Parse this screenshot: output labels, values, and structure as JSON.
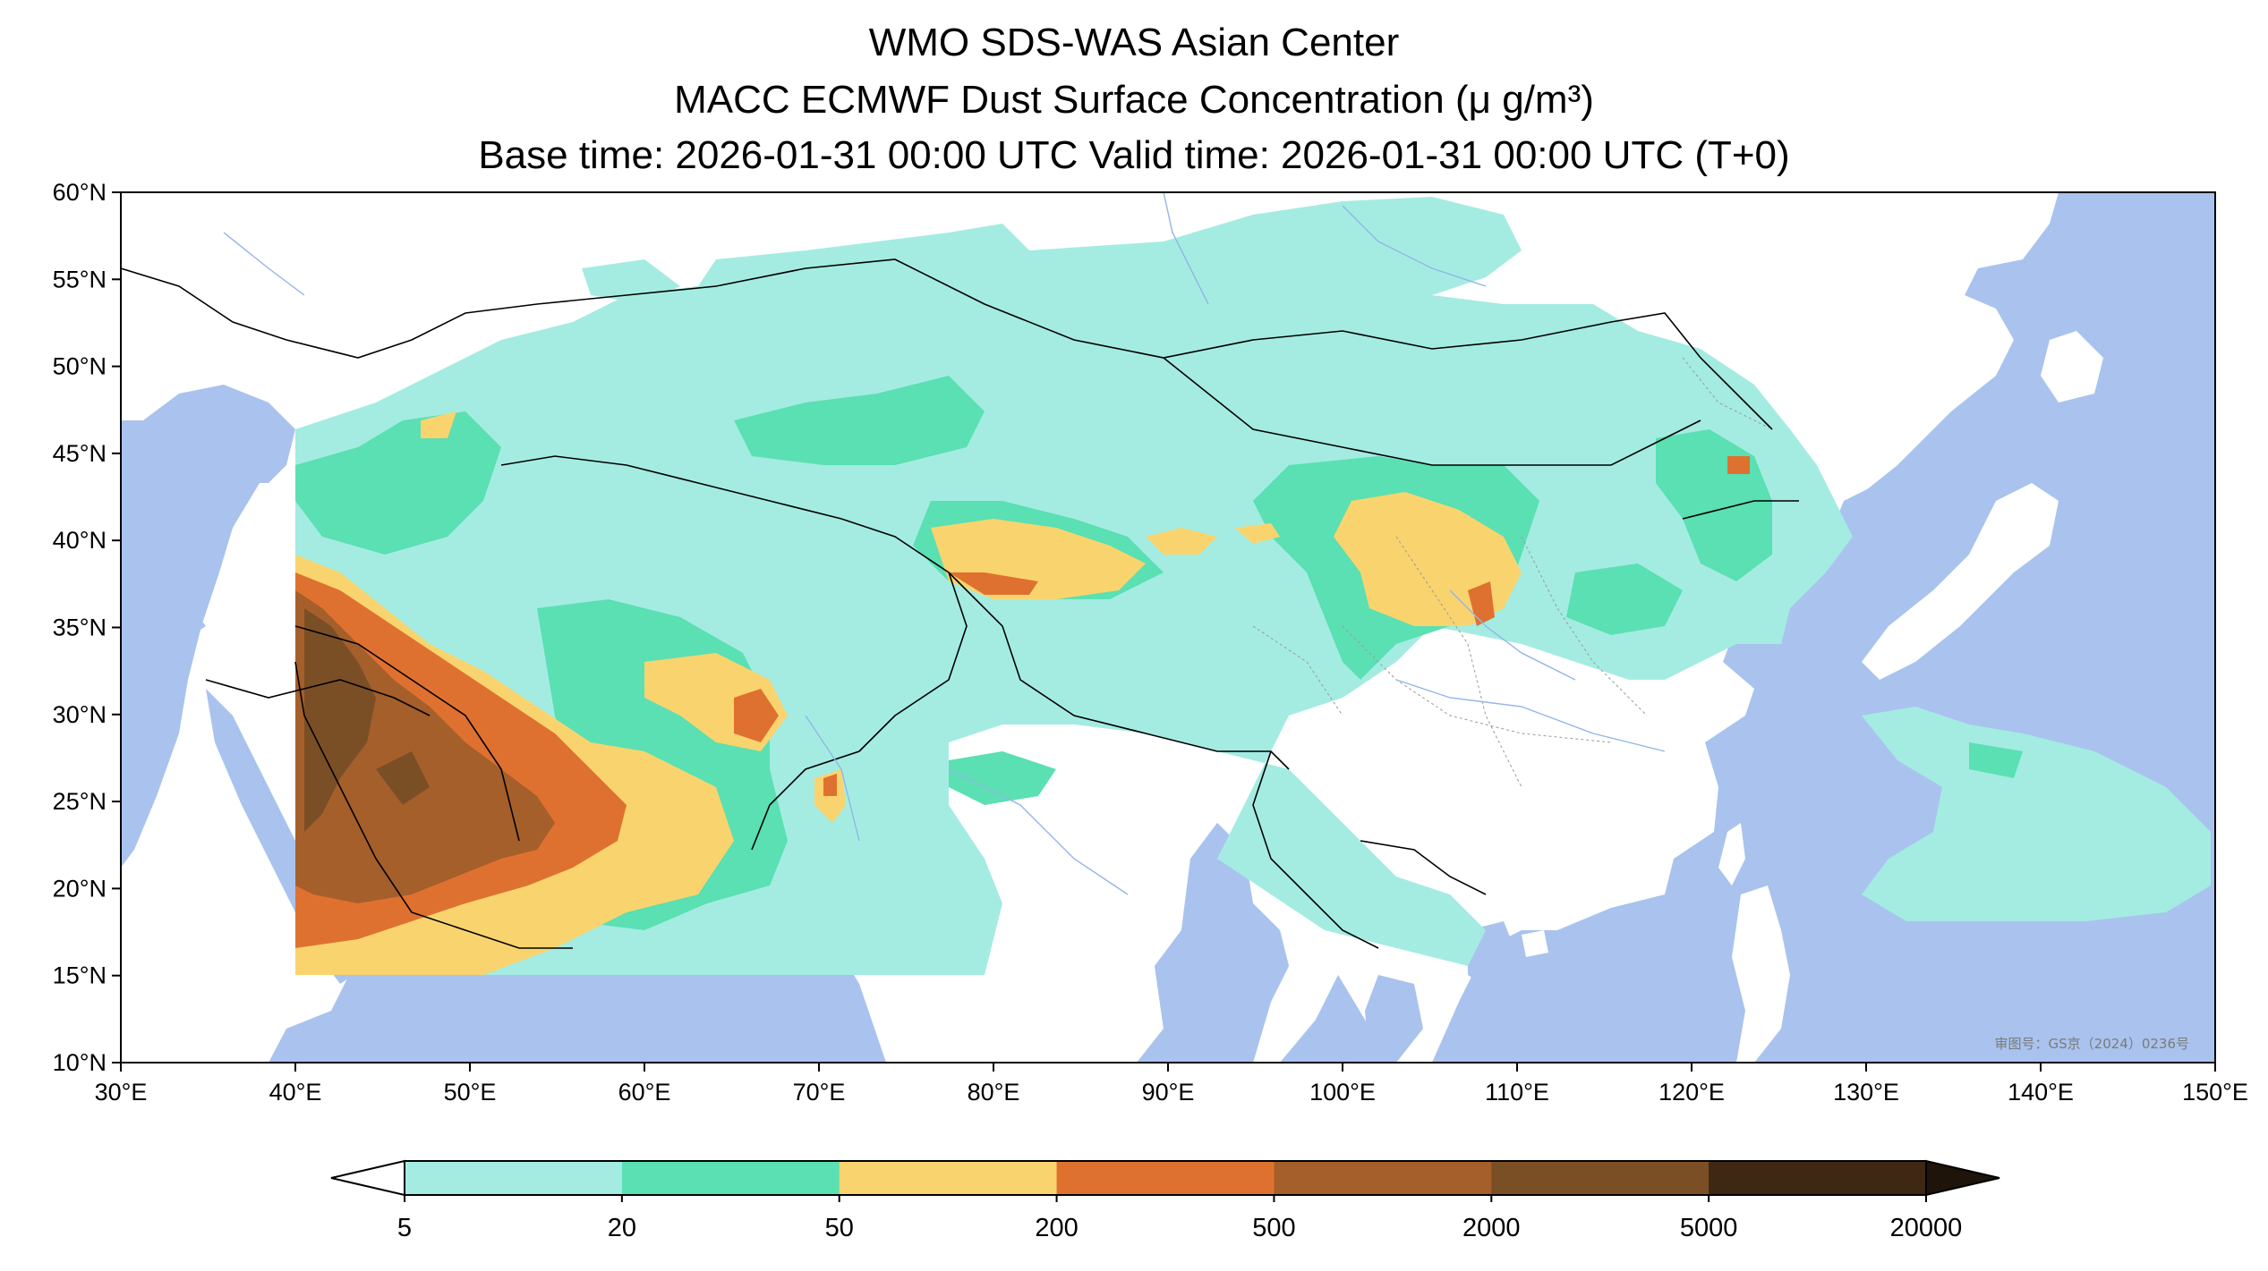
{
  "title": {
    "line1": "WMO SDS-WAS Asian Center",
    "line2": "MACC ECMWF Dust Surface Concentration (μ g/m³)",
    "line3": "Base time: 2026-01-31 00:00 UTC Valid time: 2026-01-31 00:00 UTC (T+0)"
  },
  "map": {
    "lon_range": [
      30,
      150
    ],
    "lat_range": [
      10,
      60
    ],
    "lon_ticks": [
      "30°E",
      "40°E",
      "50°E",
      "60°E",
      "70°E",
      "80°E",
      "90°E",
      "100°E",
      "110°E",
      "120°E",
      "130°E",
      "140°E",
      "150°E"
    ],
    "lat_ticks": [
      "60°N",
      "55°N",
      "50°N",
      "45°N",
      "40°N",
      "35°N",
      "30°N",
      "25°N",
      "20°N",
      "15°N",
      "10°N"
    ],
    "review_stamp": "审图号：GS京（2024）0236号",
    "colors": {
      "ocean": "#a9c3ee",
      "land": "#ffffff",
      "border": "#000000"
    }
  },
  "colorbar": {
    "levels": [
      "5",
      "20",
      "50",
      "200",
      "500",
      "2000",
      "5000",
      "20000"
    ],
    "colors": [
      "#a4ece2",
      "#5ae0b2",
      "#f9d46e",
      "#df7130",
      "#a55f2a",
      "#7b4f26",
      "#3e2713"
    ]
  }
}
